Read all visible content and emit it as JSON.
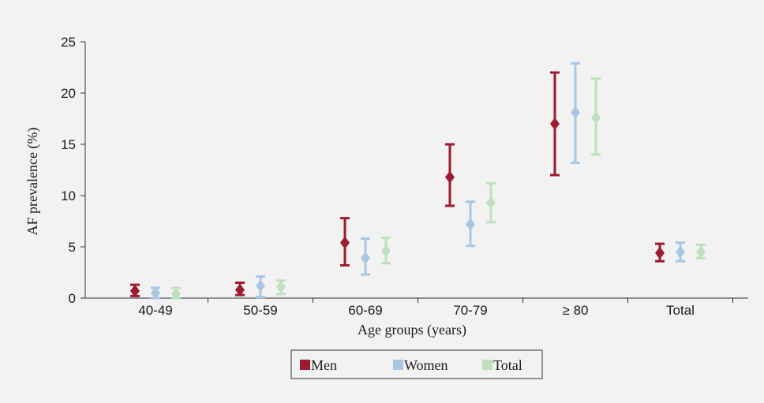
{
  "chart_data": {
    "type": "scatter",
    "subtype": "point estimates with error bars",
    "title": "",
    "xlabel": "Age groups (years)",
    "ylabel": "AF prevalence (%)",
    "ylim": [
      0,
      25
    ],
    "yticks": [
      "0",
      "5",
      "10",
      "15",
      "20",
      "25"
    ],
    "categories": [
      "40-49",
      "50-59",
      "60-69",
      "70-79",
      "≥ 80",
      "Total"
    ],
    "grid": false,
    "legend_position": "bottom-center",
    "series": [
      {
        "name": "Men",
        "color": "#9b1b30",
        "values": [
          0.7,
          0.8,
          5.4,
          11.8,
          17.0,
          4.4
        ],
        "lower": [
          0.2,
          0.3,
          3.2,
          9.0,
          12.0,
          3.6
        ],
        "upper": [
          1.3,
          1.5,
          7.8,
          15.0,
          22.0,
          5.3
        ]
      },
      {
        "name": "Women",
        "color": "#a9c6e5",
        "values": [
          0.5,
          1.2,
          3.9,
          7.2,
          18.1,
          4.5
        ],
        "lower": [
          0.0,
          0.1,
          2.3,
          5.1,
          13.2,
          3.6
        ],
        "upper": [
          1.0,
          2.1,
          5.8,
          9.4,
          22.9,
          5.4
        ]
      },
      {
        "name": "Total",
        "color": "#bfe0bf",
        "values": [
          0.4,
          1.1,
          4.6,
          9.3,
          17.6,
          4.5
        ],
        "lower": [
          0.0,
          0.4,
          3.4,
          7.4,
          14.0,
          3.9
        ],
        "upper": [
          1.0,
          1.7,
          5.9,
          11.2,
          21.4,
          5.2
        ]
      }
    ]
  }
}
